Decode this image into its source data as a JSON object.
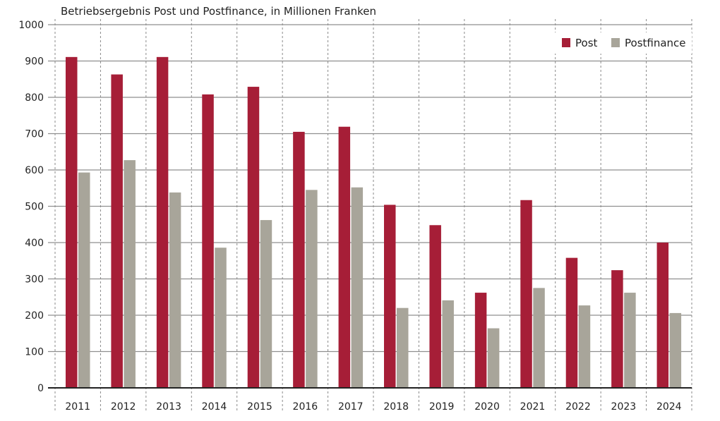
{
  "chart_data": {
    "type": "bar",
    "title": "Betriebsergebnis Post und Postfinance, in Millionen Franken",
    "xlabel": "",
    "ylabel": "",
    "ylim": [
      0,
      1000
    ],
    "yticks": [
      0,
      100,
      200,
      300,
      400,
      500,
      600,
      700,
      800,
      900,
      1000
    ],
    "grid": true,
    "legend_placement": "top-right",
    "categories": [
      "2011",
      "2012",
      "2013",
      "2014",
      "2015",
      "2016",
      "2017",
      "2018",
      "2019",
      "2020",
      "2021",
      "2022",
      "2023",
      "2024"
    ],
    "series": [
      {
        "name": "Post",
        "color": "#a61e37",
        "values": [
          911,
          863,
          911,
          808,
          829,
          705,
          719,
          504,
          448,
          262,
          517,
          358,
          324,
          400
        ]
      },
      {
        "name": "Postfinance",
        "color": "#a8a59a",
        "values": [
          593,
          627,
          538,
          386,
          462,
          545,
          552,
          220,
          241,
          164,
          275,
          227,
          262,
          206
        ]
      }
    ]
  }
}
